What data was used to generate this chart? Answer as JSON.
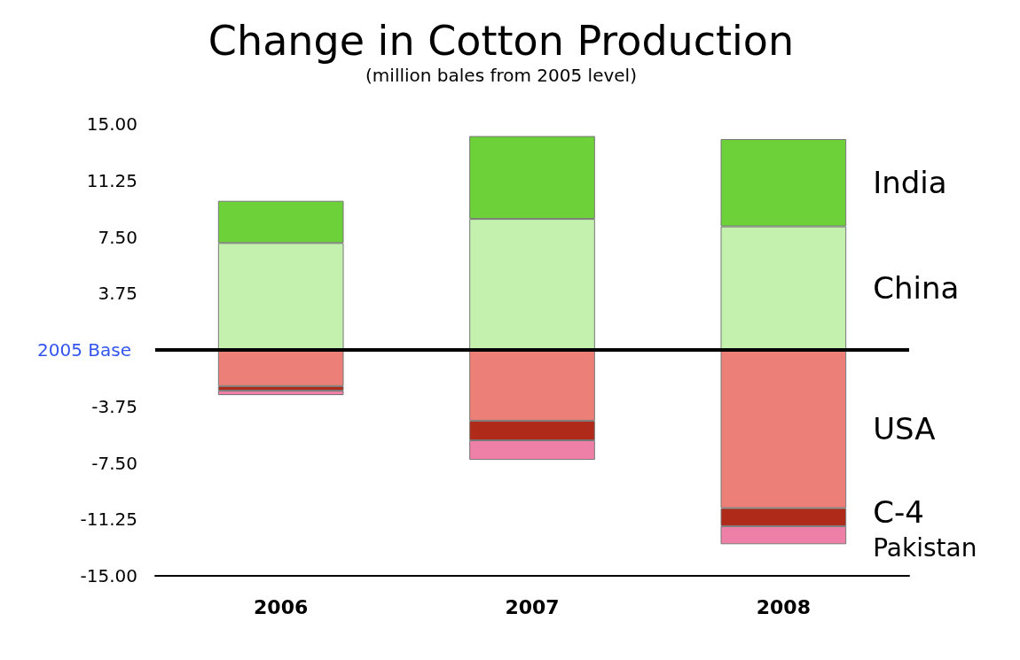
{
  "chart_data": {
    "type": "bar",
    "title": "Change in Cotton Production",
    "subtitle": "(million bales from 2005 level)",
    "categories": [
      "2006",
      "2007",
      "2008"
    ],
    "stacked": true,
    "series": [
      {
        "name": "China",
        "color": "#c4f2ae",
        "values": [
          7.1,
          8.7,
          8.2
        ]
      },
      {
        "name": "India",
        "color": "#6dd13a",
        "values": [
          2.8,
          5.5,
          5.8
        ]
      },
      {
        "name": "USA",
        "color": "#ec8078",
        "values": [
          -2.4,
          -4.7,
          -10.5
        ]
      },
      {
        "name": "C-4",
        "color": "#b02a1a",
        "values": [
          -0.3,
          -1.3,
          -1.2
        ]
      },
      {
        "name": "Pakistan",
        "color": "#ee7fa6",
        "values": [
          -0.3,
          -1.3,
          -1.2
        ]
      }
    ],
    "ylim": [
      -15,
      15
    ],
    "yticks": [
      {
        "value": -15,
        "label": "-15.00"
      },
      {
        "value": -11.25,
        "label": "-11.25"
      },
      {
        "value": -7.5,
        "label": "-7.50"
      },
      {
        "value": -3.75,
        "label": "-3.75"
      },
      {
        "value": 0,
        "label": null
      },
      {
        "value": 3.75,
        "label": "3.75"
      },
      {
        "value": 7.5,
        "label": "7.50"
      },
      {
        "value": 11.25,
        "label": "11.25"
      },
      {
        "value": 15,
        "label": "15.00"
      }
    ],
    "ref_lines": [
      {
        "axis": "y",
        "value": 0,
        "label": "2005 Base",
        "color": "#000000"
      }
    ],
    "grid": false,
    "legend": false
  }
}
